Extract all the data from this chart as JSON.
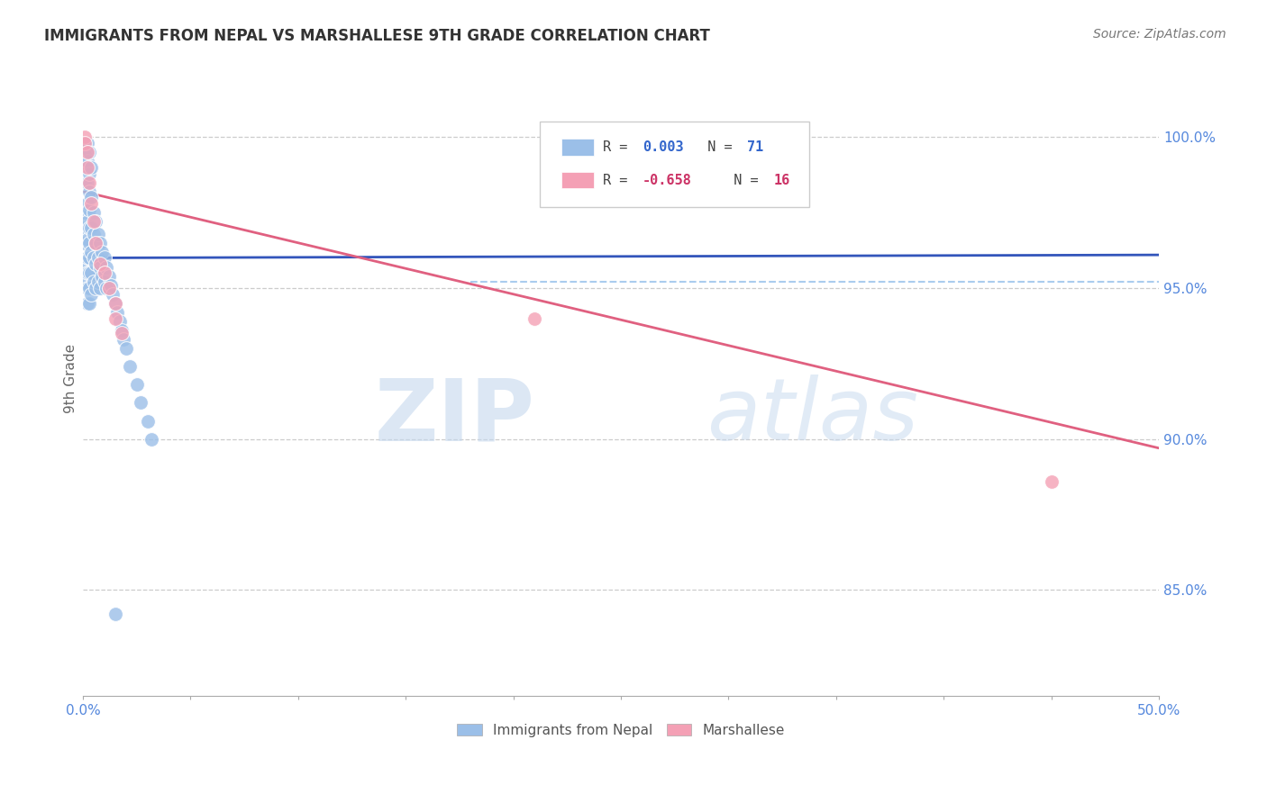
{
  "title": "IMMIGRANTS FROM NEPAL VS MARSHALLESE 9TH GRADE CORRELATION CHART",
  "source": "Source: ZipAtlas.com",
  "ylabel": "9th Grade",
  "ytick_labels": [
    "85.0%",
    "90.0%",
    "95.0%",
    "100.0%"
  ],
  "ytick_values": [
    0.85,
    0.9,
    0.95,
    1.0
  ],
  "xlim": [
    0.0,
    0.5
  ],
  "ylim": [
    0.815,
    1.025
  ],
  "legend_label1": "Immigrants from Nepal",
  "legend_label2": "Marshallese",
  "legend_R1": "0.003",
  "legend_N1": "71",
  "legend_R2": "-0.658",
  "legend_N2": "16",
  "color_nepal": "#9BBFE8",
  "color_marshallese": "#F4A0B5",
  "color_line_nepal": "#3355BB",
  "color_line_marshallese": "#E06080",
  "color_dashed": "#AACCEE",
  "nepal_x": [
    0.001,
    0.001,
    0.001,
    0.001,
    0.001,
    0.001,
    0.001,
    0.001,
    0.001,
    0.001,
    0.002,
    0.002,
    0.002,
    0.002,
    0.002,
    0.002,
    0.002,
    0.002,
    0.002,
    0.002,
    0.003,
    0.003,
    0.003,
    0.003,
    0.003,
    0.003,
    0.003,
    0.003,
    0.003,
    0.003,
    0.004,
    0.004,
    0.004,
    0.004,
    0.004,
    0.004,
    0.005,
    0.005,
    0.005,
    0.005,
    0.006,
    0.006,
    0.006,
    0.006,
    0.007,
    0.007,
    0.007,
    0.008,
    0.008,
    0.008,
    0.009,
    0.009,
    0.01,
    0.01,
    0.011,
    0.011,
    0.012,
    0.013,
    0.014,
    0.015,
    0.016,
    0.017,
    0.018,
    0.019,
    0.02,
    0.022,
    0.025,
    0.027,
    0.03,
    0.032,
    0.015
  ],
  "nepal_y": [
    0.998,
    0.996,
    0.994,
    0.99,
    0.985,
    0.975,
    0.97,
    0.965,
    0.958,
    0.952,
    0.998,
    0.992,
    0.985,
    0.978,
    0.972,
    0.966,
    0.96,
    0.955,
    0.95,
    0.945,
    0.995,
    0.988,
    0.982,
    0.976,
    0.97,
    0.965,
    0.96,
    0.955,
    0.95,
    0.945,
    0.99,
    0.98,
    0.97,
    0.962,
    0.955,
    0.948,
    0.975,
    0.968,
    0.96,
    0.952,
    0.972,
    0.965,
    0.958,
    0.95,
    0.968,
    0.96,
    0.952,
    0.965,
    0.957,
    0.95,
    0.962,
    0.954,
    0.96,
    0.952,
    0.957,
    0.95,
    0.954,
    0.951,
    0.948,
    0.945,
    0.942,
    0.939,
    0.936,
    0.933,
    0.93,
    0.924,
    0.918,
    0.912,
    0.906,
    0.9,
    0.842
  ],
  "marshallese_x": [
    0.001,
    0.001,
    0.002,
    0.002,
    0.003,
    0.004,
    0.005,
    0.006,
    0.008,
    0.01,
    0.012,
    0.015,
    0.015,
    0.018,
    0.21,
    0.45
  ],
  "marshallese_y": [
    1.0,
    0.998,
    0.995,
    0.99,
    0.985,
    0.978,
    0.972,
    0.965,
    0.958,
    0.955,
    0.95,
    0.945,
    0.94,
    0.935,
    0.94,
    0.886
  ],
  "nepal_trend_x": [
    0.0,
    0.5
  ],
  "nepal_trend_y": [
    0.96,
    0.961
  ],
  "marshallese_trend_x": [
    0.0,
    0.5
  ],
  "marshallese_trend_y": [
    0.982,
    0.897
  ],
  "dashed_line_x": [
    0.18,
    0.5
  ],
  "dashed_line_y": 0.952,
  "watermark_zip": "ZIP",
  "watermark_atlas": "atlas",
  "background_color": "#FFFFFF",
  "grid_color": "#CCCCCC"
}
